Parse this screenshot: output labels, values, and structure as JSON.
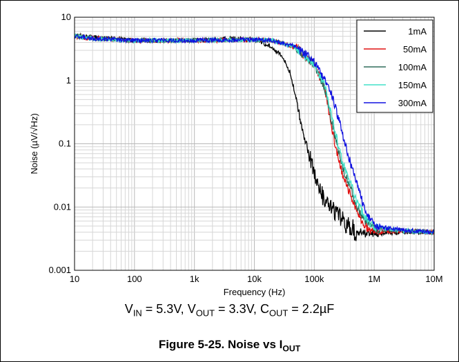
{
  "chart_data": {
    "type": "line",
    "title": "",
    "xlabel": "Frequency (Hz)",
    "ylabel": "Noise (µV/√Hz)",
    "xscale": "log",
    "yscale": "log",
    "xlim": [
      10,
      10000000
    ],
    "ylim": [
      0.001,
      10
    ],
    "grid": true,
    "legend_position": "top-right",
    "x_ticks": [
      10,
      100,
      1000,
      10000,
      100000,
      1000000,
      10000000
    ],
    "x_tick_labels": [
      "10",
      "100",
      "1k",
      "10k",
      "100k",
      "1M",
      "10M"
    ],
    "y_ticks": [
      0.001,
      0.01,
      0.1,
      1,
      10
    ],
    "y_tick_labels": [
      "0.001",
      "0.01",
      "0.1",
      "1",
      "10"
    ],
    "series": [
      {
        "name": "1mA",
        "color": "#000000",
        "x": [
          10,
          20,
          100,
          1000,
          5000,
          10000,
          20000,
          30000,
          40000,
          50000,
          60000,
          80000,
          100000,
          120000,
          150000,
          200000,
          300000,
          500000,
          1000000,
          3000000,
          10000000
        ],
        "y": [
          5.2,
          4.8,
          4.3,
          4.3,
          4.6,
          4.4,
          3.4,
          2.3,
          1.3,
          0.5,
          0.21,
          0.075,
          0.035,
          0.019,
          0.012,
          0.009,
          0.006,
          0.004,
          0.0038,
          0.004,
          0.004
        ]
      },
      {
        "name": "50mA",
        "color": "#e01010",
        "x": [
          10,
          20,
          100,
          1000,
          10000,
          20000,
          50000,
          100000,
          150000,
          200000,
          250000,
          300000,
          400000,
          500000,
          700000,
          1000000,
          3000000,
          10000000
        ],
        "y": [
          5.0,
          4.6,
          4.3,
          4.3,
          4.4,
          4.3,
          3.3,
          1.8,
          0.75,
          0.15,
          0.06,
          0.032,
          0.016,
          0.009,
          0.005,
          0.004,
          0.0042,
          0.004
        ]
      },
      {
        "name": "100mA",
        "color": "#2e6b5a",
        "x": [
          10,
          20,
          100,
          1000,
          10000,
          20000,
          50000,
          100000,
          150000,
          200000,
          250000,
          300000,
          400000,
          500000,
          700000,
          1000000,
          3000000,
          10000000
        ],
        "y": [
          5.0,
          4.6,
          4.3,
          4.3,
          4.4,
          4.3,
          3.3,
          1.8,
          0.75,
          0.2,
          0.08,
          0.04,
          0.02,
          0.011,
          0.006,
          0.0045,
          0.0042,
          0.004
        ]
      },
      {
        "name": "150mA",
        "color": "#40e0c8",
        "x": [
          10,
          20,
          100,
          1000,
          10000,
          20000,
          50000,
          100000,
          150000,
          200000,
          250000,
          300000,
          400000,
          500000,
          700000,
          1000000,
          3000000,
          10000000
        ],
        "y": [
          5.0,
          4.6,
          4.3,
          4.3,
          4.4,
          4.3,
          3.3,
          1.8,
          0.8,
          0.25,
          0.1,
          0.05,
          0.025,
          0.013,
          0.007,
          0.0048,
          0.0042,
          0.004
        ]
      },
      {
        "name": "300mA",
        "color": "#1010e0",
        "x": [
          10,
          20,
          100,
          1000,
          10000,
          20000,
          50000,
          100000,
          150000,
          200000,
          300000,
          400000,
          500000,
          700000,
          1000000,
          3000000,
          10000000
        ],
        "y": [
          5.0,
          4.6,
          4.3,
          4.3,
          4.4,
          4.3,
          3.4,
          2.0,
          1.0,
          0.55,
          0.14,
          0.05,
          0.025,
          0.009,
          0.005,
          0.0043,
          0.004
        ]
      }
    ]
  },
  "conditions": {
    "vin_label": "V",
    "vin_sub": "IN",
    "vin_value": " = 5.3V, ",
    "vout_label": "V",
    "vout_sub": "OUT",
    "vout_value": " = 3.3V, ",
    "cout_label": "C",
    "cout_sub": "OUT",
    "cout_value": " = 2.2µF"
  },
  "caption": {
    "text": "Figure 5-25. Noise vs I",
    "sub": "OUT"
  }
}
